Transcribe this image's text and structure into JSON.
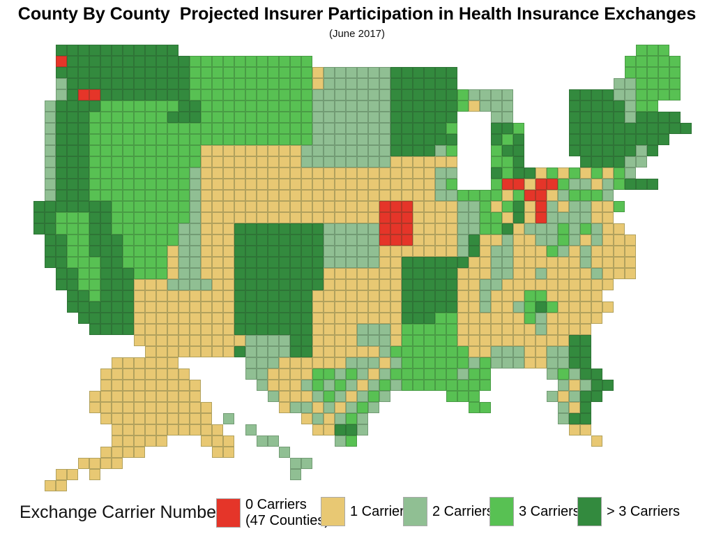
{
  "title": "County By County  Projected Insurer Participation in Health Insurance Exchanges",
  "subtitle": "(June 2017)",
  "legend": {
    "label": "Exchange Carrier Number",
    "items": [
      {
        "key": "R",
        "label": "0 Carriers",
        "sublabel": "(47 Counties)",
        "color": "#e53529"
      },
      {
        "key": "T",
        "label": "1 Carrier",
        "sublabel": "",
        "color": "#e8c873"
      },
      {
        "key": "S",
        "label": "2 Carriers",
        "sublabel": "",
        "color": "#90bf93"
      },
      {
        "key": "G",
        "label": "3 Carriers",
        "sublabel": "",
        "color": "#58c153"
      },
      {
        "key": "D",
        "label": "> 3 Carriers",
        "sublabel": "",
        "color": "#338a3e"
      }
    ]
  },
  "map": {
    "columns": 64,
    "cell_size": 16,
    "grid": [
      ".....DDDDDDDDDDD.........................................GGG....",
      ".....RDDDDDDDDDDDGGGGGGGGGGG............................GGGGG...",
      ".....DDDDDDDDDDDDGGGGGGGGGGGTSSSSSSDDDDDD...............GGGGG...",
      ".....SDDDDDDDDDDDGGGGGGGGGGGTSSSSSSDDDDDD..............SSGGGG...",
      ".....SDRRDDDDDDDDGGGGGGGGGGGSSSSSSSDDDDDDGSSSS.....DDDDSSGGGG...",
      "....SDDDDGGGGGGGDDGGGGGGGGGGSSSSSSSDDDDDDGTSSS.....DDDDDSGG.....",
      "....SDDDGGGGGGGDDDGGGGGGGGGGSSSSSSSDDDDDD...SS.....DDDDDSDDDD...",
      "....SDDDGGGGGGGGGGGGGGGGGGGGSSSSSSSDDDDDG...DDG....DDDDDDDDDDD..",
      "....SDDDGGGGGGGGGGGGGGGGGGGGSSSSSSSDDDDDD...DGD....DDDDDDDDD....",
      "....SDDDGGGGGGGGGGTTTTTTTTTSSSSSSSSDDDDSG...GDD....DDDDDDSD.....",
      "....SDDDGGGGGGGGGGTTTTTTTTTSSSSSSSSTTTTTT...GGD.....DDDDSS......",
      "....SDDDGGGGGGGGGSTTTTTTTTTTTTTTTTTTTTTSS...DGDDTGTGTGTGS.......",
      "....SDDDGGGGGGGGGSTTTTTTTTTTTTTTTTTTTTTSG...GRRTRRGSSTSGDDD.....",
      "....SDDDGGGGGGGGGSTTTTTTTTTTTTTTTTTTTTTSSGGGGTGRRTSGGGS........",
      "...DDDDDDDGGGGGGGSTTTTTTTTTTTTTTTTRRRTTTTSSGTGDTRSTSSTTG........",
      "...DDGGGDDGGGGGGGSTTTTTTTTTTTTTTTTRRRTTTTSSGGTDTRSSSSTT.........",
      "...DDGGGDDGGGGGGSSTTTDDDDDDDDSSSSSRRRTTTTSSGGDTSSSGSGSTT........",
      "....DDGGDDDGGGGGSSTTTDDDDDDDDSSSSSRRRTTTTSDTTSTTSSGSTSTTT.......",
      "....DDGGDDDGGGGTSSTTTDDDDDDDDSSSSSTTTTTTTSDTSSTTTGSTSTTTT.......",
      "....DDGGGDDGGGGTSSTTTDDDDDDDDSSSSSTTDDDDDDTTSSTTTTTTSTTTT.......",
      ".....DDGGDDDGGGTSSTTTDDDDDDDDTTTTTTTDDDDDTTTSSTTSTTTTSTTT.......",
      ".....DDGGDDDTTTSSSSTTDDDDDDDDTTTTTTTDDDDDTTSSTTTTTTTTTT.........",
      "......DDGDDDTTTTTTTTTDDDDDDDTTTTTTTTDDDDDTTSTTTGGTTTTT..........",
      "......DDDDDDTTTTTTTTTDDDDDDDTTTTTTTTDDDDDTTSTTSGDGTTTTT.........",
      ".......DDDDDTTTTTTTTTDDDDDDDTTTTTTTTDDDGGTTTTTTGSTTTTT..........",
      "........DDDDTTTTTTTTTDDDDDDDTTTTSSSTGGGGGTTTTTTTSTTTT...........",
      "............TTTTTTTTTTSSSSDDTTTTSSSTGGGGGTTTTTTTTTTDD...........",
      ".............TTTTTTTTDSSSSDDTTTTTTSGGGGGGGTTSSSTTSSDD...........",
      "..........TTTTTT......SSSTTTTTTSSSTSGGGGGGSGSSSTTSSDD...........",
      ".........TTTTTTTT.....SSTTTTGGSGSTSGGGGGGSGG.....SGSDD..........",
      ".........TTTTTTTTT.....STTTSGSGSTSGSGGGGGGGG......STSDD.........",
      "........TTTTTTTTTT......STTTSGSTSGS.....GGG......STSDD..........",
      "........TTTTTTTTTTT......TSSTSTSGS........GG......STD...........",
      ".........TTTTTTTTTT.S......TSTSGS.................SDD...........",
      "..........TTTTTTTTTT..S.....TTDDS..................TT...........",
      "..........TTTTT...TTT..SS.....SG.....................T..........",
      ".........TTTT......TT....S......................................",
      ".......TTTT...............SS....................................",
      ".....TT.T.................S.....................................",
      "....TT.........................................................."
    ]
  }
}
